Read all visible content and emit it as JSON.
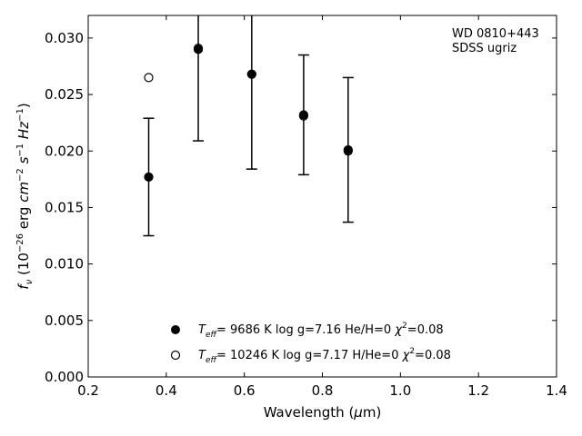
{
  "chart_data": {
    "type": "scatter",
    "xlabel": "Wavelength (μm)",
    "ylabel": "f_ν (10^-26 erg cm^-2 s^-1 Hz^-1)",
    "xlim": [
      0.2,
      1.4
    ],
    "ylim": [
      0.0,
      0.032
    ],
    "x_ticks": [
      "0.2",
      "0.4",
      "0.6",
      "0.8",
      "1.0",
      "1.2",
      "1.4"
    ],
    "y_ticks": [
      "0.000",
      "0.005",
      "0.010",
      "0.015",
      "0.020",
      "0.025",
      "0.030"
    ],
    "grid": false,
    "legend_position": "bottom-center",
    "annotation": [
      "WD 0810+443",
      "SDSS ugriz"
    ],
    "series": [
      {
        "marker": "filled-circle",
        "legend": {
          "teff": "9686",
          "logg": "7.16",
          "comp": "He/H=0",
          "chi2": "0.08"
        },
        "points": [
          {
            "x": 0.355,
            "y": 0.0177,
            "err": 0.0052
          },
          {
            "x": 0.482,
            "y": 0.029,
            "err": 0.0081
          },
          {
            "x": 0.619,
            "y": 0.0268,
            "err": 0.0084
          },
          {
            "x": 0.752,
            "y": 0.0232,
            "err": 0.0053
          },
          {
            "x": 0.866,
            "y": 0.0201,
            "err": 0.0064
          }
        ]
      },
      {
        "marker": "open-circle",
        "legend": {
          "teff": "10246",
          "logg": "7.17",
          "comp": "H/He=0",
          "chi2": "0.08"
        },
        "points": [
          {
            "x": 0.355,
            "y": 0.0265
          },
          {
            "x": 0.482,
            "y": 0.0291
          },
          {
            "x": 0.619,
            "y": 0.0268
          },
          {
            "x": 0.752,
            "y": 0.0231
          },
          {
            "x": 0.866,
            "y": 0.02
          }
        ]
      }
    ]
  }
}
